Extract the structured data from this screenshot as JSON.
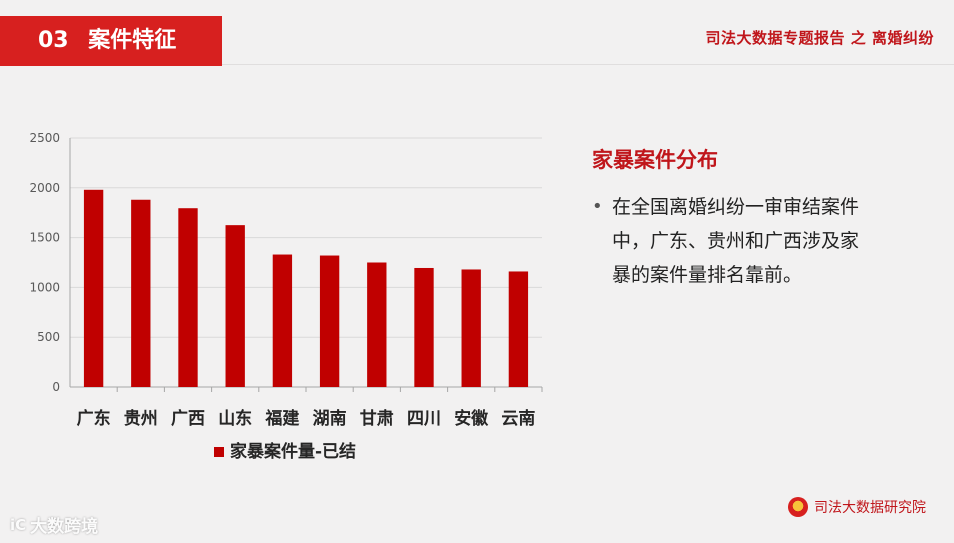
{
  "header": {
    "section_number": "03",
    "section_title": "案件特征",
    "report_title": "司法大数据专题报告 之 离婚纠纷"
  },
  "side_panel": {
    "title": "家暴案件分布",
    "bullets": [
      "在全国离婚纠纷一审审结案件中，广东、贵州和广西涉及家暴的案件量排名靠前。"
    ]
  },
  "footer": {
    "institute": "司法大数据研究院",
    "watermark_logo": "iC",
    "watermark_text": "大数跨境"
  },
  "chart_data": {
    "type": "bar",
    "categories": [
      "广东",
      "贵州",
      "广西",
      "山东",
      "福建",
      "湖南",
      "甘肃",
      "四川",
      "安徽",
      "云南"
    ],
    "series": [
      {
        "name": "家暴案件量-已结",
        "values": [
          1980,
          1880,
          1795,
          1625,
          1330,
          1320,
          1250,
          1195,
          1180,
          1160
        ],
        "color": "#c00000"
      }
    ],
    "yticks": [
      0,
      500,
      1000,
      1500,
      2000,
      2500
    ],
    "ylim": [
      0,
      2500
    ],
    "grid": true,
    "legend_position": "bottom"
  }
}
